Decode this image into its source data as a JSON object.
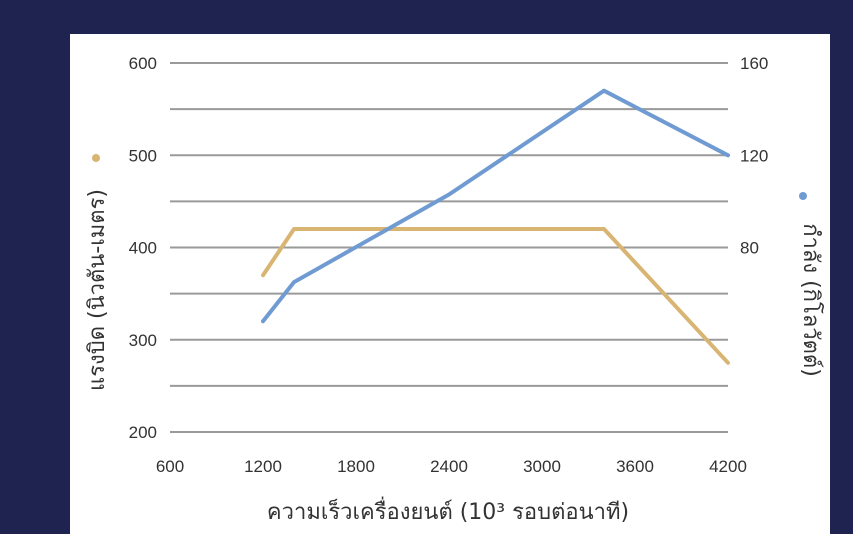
{
  "chart_data": {
    "type": "line",
    "xlabel": "ความเร็วเครื่องยนต์ (10³ รอบต่อนาที)",
    "ylabel_left": "แรงบิด (นิวตัน-เมตร)",
    "ylabel_right": "กำลัง (กิโลวัตต์)",
    "x_ticks": [
      "600",
      "1200",
      "1800",
      "2400",
      "3000",
      "3600",
      "4200"
    ],
    "y_left_ticks": [
      "200",
      "300",
      "400",
      "500",
      "600"
    ],
    "y_right_ticks": [
      "80",
      "120",
      "160"
    ],
    "xlim": [
      600,
      4200
    ],
    "ylim_left": [
      200,
      600
    ],
    "ylim_right": [
      0,
      160
    ],
    "grid": true,
    "series": [
      {
        "axis": "left",
        "color": "#d9b574",
        "x": [
          1200,
          1400,
          3400,
          4200
        ],
        "y": [
          370,
          420,
          420,
          275
        ]
      },
      {
        "axis": "right",
        "color": "#6f9bd2",
        "x": [
          1200,
          1400,
          2400,
          3400,
          4200
        ],
        "y": [
          48,
          65,
          103,
          148,
          120
        ]
      }
    ]
  }
}
